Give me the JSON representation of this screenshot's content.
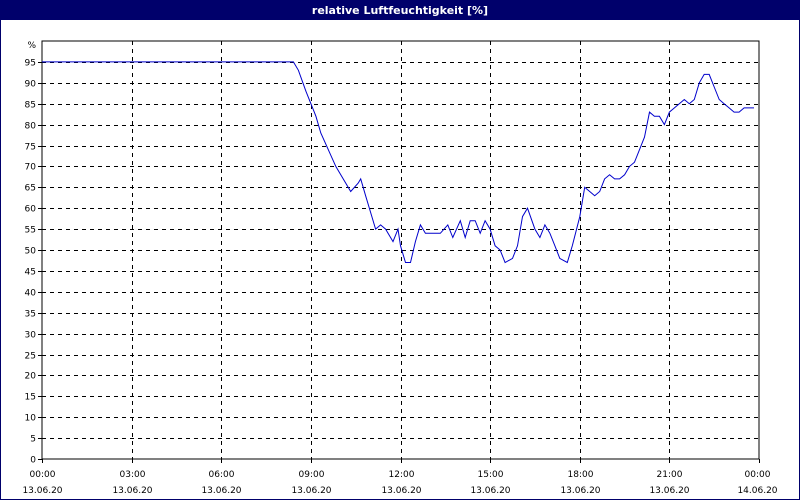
{
  "window": {
    "title": "relative Luftfeuchtigkeit [%]"
  },
  "chart_data": {
    "type": "line",
    "title": "relative Luftfeuchtigkeit [%]",
    "ylabel": "%",
    "xlabel": "",
    "ylim": [
      0,
      100
    ],
    "yticks": [
      0,
      5,
      10,
      15,
      20,
      25,
      30,
      35,
      40,
      45,
      50,
      55,
      60,
      65,
      70,
      75,
      80,
      85,
      90,
      95
    ],
    "ytick_unit_label": "%",
    "xlim_hours": [
      0,
      24
    ],
    "xticks": [
      {
        "time": "00:00",
        "date": "13.06.20"
      },
      {
        "time": "03:00",
        "date": "13.06.20"
      },
      {
        "time": "06:00",
        "date": "13.06.20"
      },
      {
        "time": "09:00",
        "date": "13.06.20"
      },
      {
        "time": "12:00",
        "date": "13.06.20"
      },
      {
        "time": "15:00",
        "date": "13.06.20"
      },
      {
        "time": "18:00",
        "date": "13.06.20"
      },
      {
        "time": "21:00",
        "date": "13.06.20"
      },
      {
        "time": "00:00",
        "date": "14.06.20"
      }
    ],
    "grid": true,
    "line_color": "#0000cc",
    "series": [
      {
        "x": [
          "00:00",
          "08:25",
          "08:35",
          "08:50",
          "09:00",
          "09:10",
          "09:20",
          "09:35",
          "09:50",
          "10:05",
          "10:20",
          "10:35",
          "10:40",
          "10:50",
          "11:00",
          "11:10",
          "11:20",
          "11:30",
          "11:45",
          "11:55",
          "12:00",
          "12:10",
          "12:20",
          "12:30",
          "12:40",
          "12:50",
          "13:00",
          "13:10",
          "13:20",
          "13:35",
          "13:45",
          "14:00",
          "14:10",
          "14:20",
          "14:30",
          "14:40",
          "14:50",
          "15:00",
          "15:10",
          "15:20",
          "15:30",
          "15:45",
          "15:55",
          "16:05",
          "16:15",
          "16:30",
          "16:40",
          "16:50",
          "17:00",
          "17:10",
          "17:20",
          "17:35",
          "17:45",
          "18:00",
          "18:10",
          "18:20",
          "18:30",
          "18:40",
          "18:50",
          "19:00",
          "19:10",
          "19:20",
          "19:30",
          "19:40",
          "19:50",
          "20:00",
          "20:10",
          "20:20",
          "20:30",
          "20:40",
          "20:50",
          "21:00",
          "21:10",
          "21:20",
          "21:30",
          "21:40",
          "21:50",
          "22:00",
          "22:10",
          "22:20",
          "22:30",
          "22:40",
          "22:50",
          "23:00",
          "23:10",
          "23:20",
          "23:30",
          "23:40",
          "23:50"
        ],
        "y": [
          95,
          95,
          93,
          88,
          85,
          82,
          78,
          74,
          70,
          67,
          64,
          66,
          67,
          63,
          59,
          55,
          56,
          55,
          52,
          55,
          51,
          47,
          47,
          52,
          56,
          54,
          54,
          54,
          54,
          56,
          53,
          57,
          53,
          57,
          57,
          54,
          57,
          55,
          51,
          50,
          47,
          48,
          51,
          58,
          60,
          55,
          53,
          56,
          54,
          51,
          48,
          47,
          51,
          58,
          65,
          64,
          63,
          64,
          67,
          68,
          67,
          67,
          68,
          70,
          71,
          74,
          77,
          83,
          82,
          82,
          80,
          83,
          84,
          85,
          86,
          85,
          86,
          90,
          92,
          92,
          89,
          86,
          85,
          84,
          83,
          83,
          84,
          84,
          84
        ]
      }
    ]
  }
}
